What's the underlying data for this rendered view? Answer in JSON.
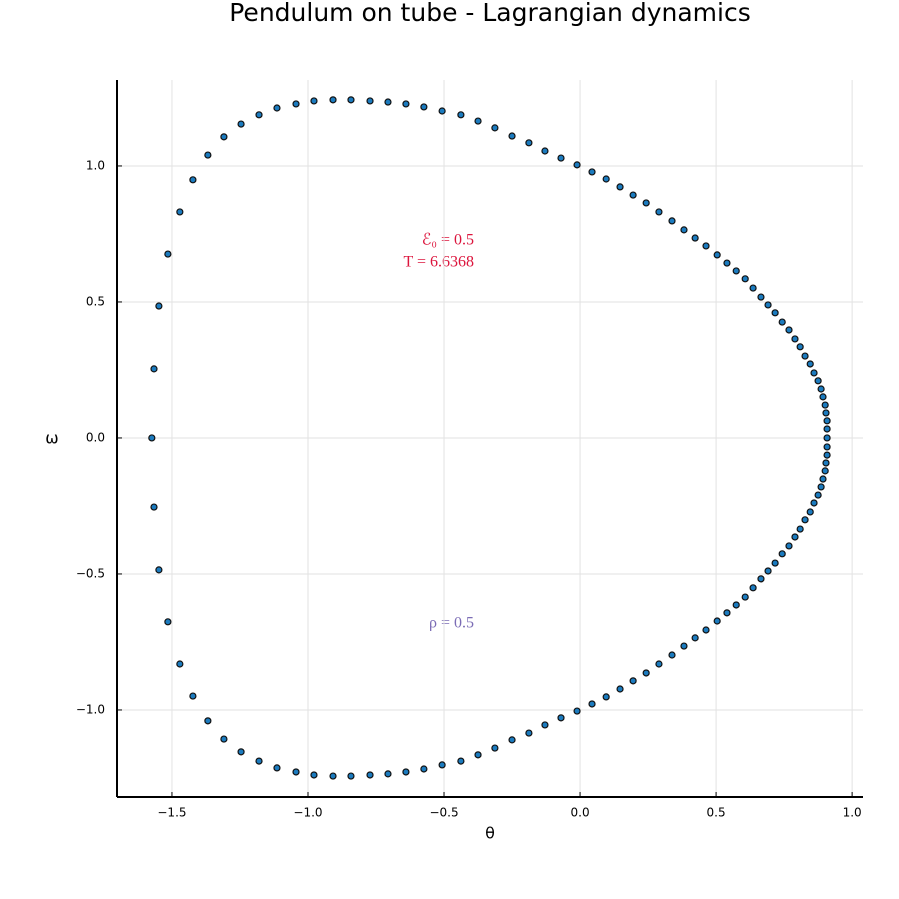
{
  "chart_data": {
    "type": "scatter",
    "title": "Pendulum on tube - Lagrangian dynamics",
    "x_label": "θ",
    "y_label": "ω",
    "annotations": [
      "ℰ₀ = 0.5",
      "T = 6.6368",
      "ρ = 0.5"
    ],
    "annotation_colors": [
      "#dc143c",
      "#dc143c",
      "#7b6cb5"
    ],
    "color": "#1b7bbf",
    "grid": true,
    "xlim": [
      -1.702,
      1.04
    ],
    "ylim": [
      -1.32,
      1.316
    ],
    "xticks": [
      {
        "value": -1.5,
        "label": "−1.5"
      },
      {
        "value": -1.0,
        "label": "−1.0"
      },
      {
        "value": -0.5,
        "label": "−0.5"
      },
      {
        "value": 0,
        "label": "0.0"
      },
      0.5,
      {
        "value": 1.0,
        "label": "1.0"
      }
    ],
    "yticks": [
      {
        "value": -1.0,
        "label": "−1.0"
      },
      {
        "value": -0.5,
        "label": "−0.5"
      },
      {
        "value": 0,
        "label": "0.0"
      },
      0.5,
      {
        "value": 1.0,
        "label": "1.0"
      }
    ],
    "x": [
      -1.574,
      -1.566,
      -1.548,
      -1.515,
      -1.471,
      -1.423,
      -1.368,
      -1.309,
      -1.246,
      -1.18,
      -1.114,
      -1.044,
      -0.978,
      -0.908,
      -0.842,
      -0.772,
      -0.706,
      -0.64,
      -0.574,
      -0.507,
      -0.438,
      -0.375,
      -0.313,
      -0.25,
      -0.188,
      -0.129,
      -0.07,
      -0.011,
      0.044,
      0.096,
      0.147,
      0.195,
      0.243,
      0.29,
      0.338,
      0.382,
      0.423,
      0.463,
      0.504,
      0.54,
      0.574,
      0.607,
      0.636,
      0.665,
      0.691,
      0.717,
      0.743,
      0.768,
      0.79,
      0.809,
      0.827,
      0.846,
      0.86,
      0.875,
      0.886,
      0.893,
      0.901,
      0.904,
      0.908,
      0.908,
      0.908,
      0.908,
      0.908,
      0.904,
      0.901,
      0.893,
      0.886,
      0.875,
      0.86,
      0.846,
      0.827,
      0.809,
      0.79,
      0.768,
      0.743,
      0.717,
      0.691,
      0.665,
      0.636,
      0.607,
      0.574,
      0.54,
      0.504,
      0.463,
      0.423,
      0.382,
      0.338,
      0.29,
      0.243,
      0.195,
      0.147,
      0.096,
      0.044,
      -0.011,
      -0.07,
      -0.129,
      -0.188,
      -0.25,
      -0.313,
      -0.375,
      -0.438,
      -0.507,
      -0.574,
      -0.64,
      -0.706,
      -0.772,
      -0.842,
      -0.908,
      -0.978,
      -1.044,
      -1.114,
      -1.18,
      -1.246,
      -1.309,
      -1.368,
      -1.423,
      -1.471,
      -1.515,
      -1.548,
      -1.566
    ],
    "values": [
      0,
      0.254,
      0.485,
      0.676,
      0.831,
      0.949,
      1.04,
      1.107,
      1.154,
      1.188,
      1.213,
      1.228,
      1.239,
      1.243,
      1.243,
      1.239,
      1.235,
      1.228,
      1.217,
      1.202,
      1.188,
      1.165,
      1.14,
      1.11,
      1.085,
      1.055,
      1.029,
      1.004,
      0.978,
      0.952,
      0.923,
      0.893,
      0.864,
      0.831,
      0.798,
      0.765,
      0.735,
      0.706,
      0.673,
      0.643,
      0.614,
      0.585,
      0.551,
      0.518,
      0.489,
      0.46,
      0.426,
      0.397,
      0.364,
      0.335,
      0.301,
      0.272,
      0.239,
      0.21,
      0.18,
      0.151,
      0.121,
      0.092,
      0.063,
      0.033,
      0,
      -0.033,
      -0.063,
      -0.092,
      -0.121,
      -0.151,
      -0.18,
      -0.21,
      -0.239,
      -0.272,
      -0.301,
      -0.335,
      -0.364,
      -0.397,
      -0.426,
      -0.46,
      -0.489,
      -0.518,
      -0.551,
      -0.585,
      -0.614,
      -0.643,
      -0.673,
      -0.706,
      -0.735,
      -0.765,
      -0.798,
      -0.831,
      -0.864,
      -0.893,
      -0.923,
      -0.952,
      -0.978,
      -1.004,
      -1.029,
      -1.055,
      -1.085,
      -1.11,
      -1.14,
      -1.165,
      -1.188,
      -1.202,
      -1.217,
      -1.228,
      -1.235,
      -1.239,
      -1.243,
      -1.243,
      -1.239,
      -1.228,
      -1.213,
      -1.188,
      -1.154,
      -1.107,
      -1.04,
      -0.949,
      -0.831,
      -0.676,
      -0.485,
      -0.254
    ]
  }
}
